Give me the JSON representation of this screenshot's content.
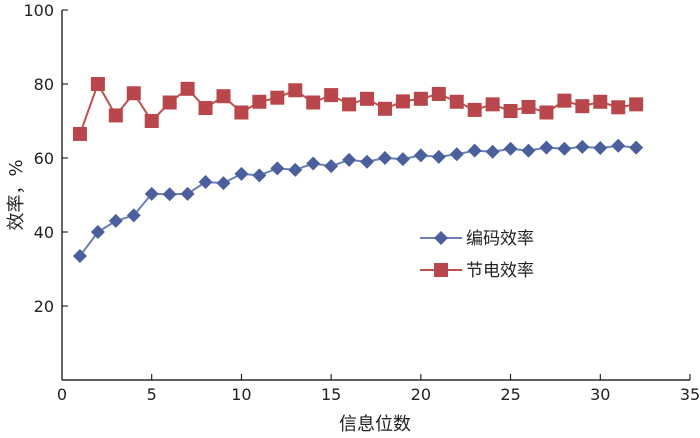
{
  "chart_data": {
    "type": "line",
    "xlabel": "信息位数",
    "ylabel": "效率，%",
    "xlim": [
      0,
      35
    ],
    "ylim": [
      0,
      100
    ],
    "xticks": [
      0,
      5,
      10,
      15,
      20,
      25,
      30,
      35
    ],
    "yticks": [
      20,
      40,
      60,
      80,
      100
    ],
    "grid": false,
    "legend_position": "right-middle",
    "x": [
      1,
      2,
      3,
      4,
      5,
      6,
      7,
      8,
      9,
      10,
      11,
      12,
      13,
      14,
      15,
      16,
      17,
      18,
      19,
      20,
      21,
      22,
      23,
      24,
      25,
      26,
      27,
      28,
      29,
      30,
      31,
      32
    ],
    "series": [
      {
        "name": "编码效率",
        "marker": "diamond",
        "color": "#4a5f9c",
        "line_color": "#6a7fb8",
        "values": [
          33.5,
          40,
          43,
          44.5,
          50.3,
          50.2,
          50.3,
          53.5,
          53.2,
          55.7,
          55.3,
          57.2,
          56.8,
          58.5,
          57.8,
          59.5,
          59,
          60,
          59.7,
          60.7,
          60.3,
          61,
          62,
          61.7,
          62.5,
          62,
          62.8,
          62.5,
          63,
          62.7,
          63.3,
          62.8
        ]
      },
      {
        "name": "节电效率",
        "marker": "square",
        "color": "#b8464b",
        "line_color": "#c0504d",
        "values": [
          66.5,
          80,
          71.5,
          77.5,
          70,
          75,
          78.7,
          73.5,
          76.7,
          72.3,
          75.2,
          76.3,
          78.3,
          75,
          77,
          74.5,
          76,
          73.3,
          75.3,
          76,
          77.3,
          75.2,
          73,
          74.5,
          72.7,
          73.8,
          72.3,
          75.5,
          74,
          75.2,
          73.7,
          74.5
        ]
      }
    ]
  }
}
